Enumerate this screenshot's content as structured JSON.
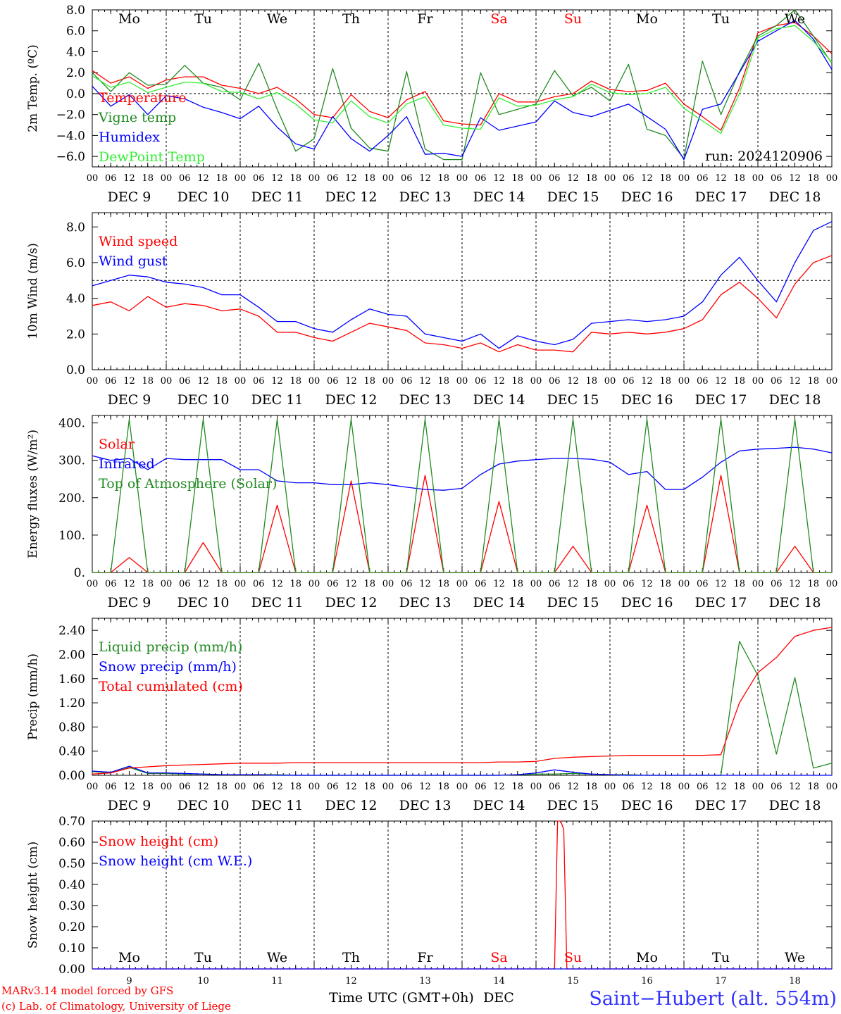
{
  "chart_data": [
    {
      "type": "line",
      "ylabel": "2m Temp. (ºC)",
      "ylim": [
        -7,
        8
      ],
      "yticks": [
        -6,
        -4,
        -2,
        0,
        2,
        4,
        6,
        8
      ],
      "ytick_labels": [
        "−6.0",
        "−4.0",
        "−2.0",
        "0.0",
        "2.0",
        "4.0",
        "6.0",
        "8.0"
      ],
      "reference_line": 0,
      "weekdays": [
        "Mo",
        "Tu",
        "We",
        "Th",
        "Fr",
        "Sa",
        "Su",
        "Mo",
        "Tu",
        "We"
      ],
      "weekday_colors": [
        "#000000",
        "#000000",
        "#000000",
        "#000000",
        "#000000",
        "#ff0000",
        "#ff0000",
        "#000000",
        "#000000",
        "#000000"
      ],
      "annotation": "run: 2024120906",
      "x_hours": [
        0,
        6,
        12,
        18,
        24,
        30,
        36,
        42,
        48,
        54,
        60,
        66,
        72,
        78,
        84,
        90,
        96,
        102,
        108,
        114,
        120,
        126,
        132,
        138,
        144,
        150,
        156,
        162,
        168,
        174,
        180,
        186,
        192,
        198,
        204,
        210,
        216,
        222,
        228,
        234,
        240
      ],
      "series": [
        {
          "name": "Temperature",
          "color": "#ff0000",
          "values": [
            2.2,
            1.0,
            1.6,
            0.5,
            1.3,
            1.6,
            1.6,
            0.8,
            0.5,
            0.0,
            0.6,
            -0.5,
            -2.0,
            -2.3,
            -0.1,
            -1.7,
            -2.3,
            -0.6,
            0.2,
            -2.6,
            -2.9,
            -3.0,
            0.0,
            -0.8,
            -0.8,
            -0.3,
            0.0,
            1.2,
            0.4,
            0.2,
            0.3,
            1.0,
            -1.0,
            -2.2,
            -3.5,
            0.5,
            5.8,
            6.5,
            6.8,
            5.5,
            3.8
          ]
        },
        {
          "name": "Vigne temp",
          "color": "#228b22",
          "values": [
            2.0,
            0.2,
            2.0,
            0.8,
            0.9,
            2.7,
            1.0,
            0.6,
            -0.6,
            2.9,
            -1.5,
            -5.5,
            -4.3,
            2.4,
            -3.3,
            -5.2,
            -5.5,
            2.1,
            -5.3,
            -6.3,
            -6.3,
            2.0,
            -2.0,
            -1.5,
            -1.0,
            2.2,
            -0.2,
            0.6,
            -0.7,
            2.8,
            -3.4,
            -4.0,
            -6.2,
            3.1,
            -2.0,
            2.1,
            5.5,
            6.5,
            8.0,
            5.5,
            2.9
          ]
        },
        {
          "name": "Humidex",
          "color": "#0000ff",
          "values": [
            0.7,
            -1.2,
            -0.1,
            -2.0,
            -0.2,
            -0.5,
            -1.3,
            -1.8,
            -2.4,
            -1.2,
            -3.2,
            -4.8,
            -5.3,
            -2.2,
            -4.3,
            -5.5,
            -4.0,
            -2.2,
            -5.8,
            -5.7,
            -6.0,
            -2.3,
            -3.5,
            -3.1,
            -2.7,
            -0.7,
            -1.8,
            -2.2,
            -1.6,
            -1.0,
            -2.2,
            -3.4,
            -6.3,
            -1.5,
            -1.0,
            2.0,
            5.0,
            6.0,
            7.0,
            5.2,
            2.3
          ]
        },
        {
          "name": "DewPoint Temp",
          "color": "#33ee33",
          "values": [
            1.7,
            0.6,
            1.1,
            0.1,
            0.6,
            1.1,
            1.0,
            0.2,
            0.1,
            -0.5,
            0.1,
            -1.0,
            -2.5,
            -2.8,
            -0.7,
            -2.2,
            -2.8,
            -1.0,
            -0.3,
            -3.0,
            -3.3,
            -3.4,
            -0.4,
            -1.2,
            -1.1,
            -0.6,
            -0.3,
            0.9,
            0.1,
            -0.1,
            0.0,
            0.6,
            -1.4,
            -2.6,
            -3.8,
            0.0,
            5.3,
            6.2,
            6.5,
            5.0,
            3.0
          ]
        }
      ]
    },
    {
      "type": "line",
      "ylabel": "10m Wind (m/s)",
      "ylim": [
        0,
        8.8
      ],
      "yticks": [
        0,
        2,
        4,
        6,
        8
      ],
      "ytick_labels": [
        "0.0",
        "2.0",
        "4.0",
        "6.0",
        "8.0"
      ],
      "reference_line": 5,
      "x_hours": [
        0,
        6,
        12,
        18,
        24,
        30,
        36,
        42,
        48,
        54,
        60,
        66,
        72,
        78,
        84,
        90,
        96,
        102,
        108,
        114,
        120,
        126,
        132,
        138,
        144,
        150,
        156,
        162,
        168,
        174,
        180,
        186,
        192,
        198,
        204,
        210,
        216,
        222,
        228,
        234,
        240
      ],
      "series": [
        {
          "name": "Wind speed",
          "color": "#ff0000",
          "values": [
            3.6,
            3.8,
            3.3,
            4.1,
            3.5,
            3.7,
            3.6,
            3.3,
            3.4,
            3.0,
            2.1,
            2.1,
            1.8,
            1.6,
            2.1,
            2.6,
            2.4,
            2.2,
            1.5,
            1.4,
            1.2,
            1.5,
            1.0,
            1.4,
            1.1,
            1.1,
            1.0,
            2.1,
            2.0,
            2.1,
            2.0,
            2.1,
            2.3,
            2.8,
            4.2,
            4.9,
            4.0,
            2.9,
            4.8,
            6.0,
            6.4
          ]
        },
        {
          "name": "Wind gust",
          "color": "#0000ff",
          "values": [
            4.7,
            5.0,
            5.3,
            5.2,
            4.9,
            4.8,
            4.6,
            4.2,
            4.2,
            3.5,
            2.7,
            2.7,
            2.3,
            2.1,
            2.8,
            3.4,
            3.1,
            3.0,
            2.0,
            1.8,
            1.6,
            2.0,
            1.2,
            1.9,
            1.6,
            1.4,
            1.7,
            2.6,
            2.7,
            2.8,
            2.7,
            2.8,
            3.0,
            3.8,
            5.3,
            6.3,
            5.0,
            3.8,
            6.0,
            7.8,
            8.3
          ]
        }
      ]
    },
    {
      "type": "line",
      "ylabel": "Energy fluxes (W/m²)",
      "ylim": [
        0,
        420
      ],
      "yticks": [
        0,
        100,
        200,
        300,
        400
      ],
      "ytick_labels": [
        "0.",
        "100.",
        "200.",
        "300.",
        "400."
      ],
      "x_hours": [
        0,
        6,
        12,
        18,
        24,
        30,
        36,
        42,
        48,
        54,
        60,
        66,
        72,
        78,
        84,
        90,
        96,
        102,
        108,
        114,
        120,
        126,
        132,
        138,
        144,
        150,
        156,
        162,
        168,
        174,
        180,
        186,
        192,
        198,
        204,
        210,
        216,
        222,
        228,
        234,
        240
      ],
      "series": [
        {
          "name": "Solar",
          "color": "#ff0000",
          "values": [
            0,
            0,
            40,
            0,
            0,
            0,
            80,
            0,
            0,
            0,
            180,
            0,
            0,
            0,
            245,
            0,
            0,
            0,
            260,
            0,
            0,
            0,
            190,
            0,
            0,
            0,
            70,
            0,
            0,
            0,
            180,
            0,
            0,
            0,
            260,
            0,
            0,
            0,
            70,
            0,
            0
          ]
        },
        {
          "name": "Infrared",
          "color": "#0000ff",
          "values": [
            312,
            300,
            305,
            275,
            305,
            302,
            302,
            302,
            275,
            275,
            245,
            240,
            240,
            235,
            235,
            240,
            235,
            228,
            222,
            220,
            225,
            262,
            290,
            298,
            302,
            305,
            305,
            303,
            295,
            262,
            270,
            222,
            222,
            255,
            295,
            325,
            330,
            332,
            335,
            330,
            320
          ]
        },
        {
          "name": "Top of Atmosphere (Solar)",
          "color": "#228b22",
          "values": [
            0,
            0,
            410,
            0,
            0,
            0,
            410,
            0,
            0,
            0,
            410,
            0,
            0,
            0,
            410,
            0,
            0,
            0,
            410,
            0,
            0,
            0,
            410,
            0,
            0,
            0,
            410,
            0,
            0,
            0,
            410,
            0,
            0,
            0,
            410,
            0,
            0,
            0,
            410,
            0,
            0
          ]
        }
      ]
    },
    {
      "type": "line",
      "ylabel": "Precip (mm/h)",
      "ylim": [
        0,
        2.6
      ],
      "yticks": [
        0,
        0.4,
        0.8,
        1.2,
        1.6,
        2.0,
        2.4
      ],
      "ytick_labels": [
        "0.00",
        "0.40",
        "0.80",
        "1.20",
        "1.60",
        "2.00",
        "2.40"
      ],
      "x_hours": [
        0,
        6,
        12,
        18,
        24,
        30,
        36,
        42,
        48,
        54,
        60,
        66,
        72,
        78,
        84,
        90,
        96,
        102,
        108,
        114,
        120,
        126,
        132,
        138,
        144,
        150,
        156,
        162,
        168,
        174,
        180,
        186,
        192,
        198,
        204,
        210,
        216,
        222,
        228,
        234,
        240
      ],
      "series": [
        {
          "name": "Liquid precip (mm/h)",
          "color": "#228b22",
          "values": [
            0.06,
            0.04,
            0.13,
            0.03,
            0.03,
            0.02,
            0.02,
            0.01,
            0.01,
            0.01,
            0.01,
            0.0,
            0.0,
            0.0,
            0.0,
            0.0,
            0.0,
            0.0,
            0.0,
            0.0,
            0.0,
            0.0,
            0.0,
            0.01,
            0.02,
            0.02,
            0.03,
            0.02,
            0.01,
            0.01,
            0.0,
            0.0,
            0.0,
            0.0,
            0.0,
            2.22,
            1.65,
            0.35,
            1.62,
            0.12,
            0.2
          ]
        },
        {
          "name": "Snow precip (mm/h)",
          "color": "#0000ff",
          "values": [
            0.07,
            0.05,
            0.15,
            0.04,
            0.04,
            0.03,
            0.02,
            0.01,
            0.01,
            0.01,
            0.0,
            0.0,
            0.0,
            0.0,
            0.0,
            0.0,
            0.0,
            0.0,
            0.0,
            0.0,
            0.0,
            0.0,
            0.0,
            0.01,
            0.04,
            0.09,
            0.05,
            0.02,
            0.01,
            0.0,
            0.0,
            0.0,
            0.0,
            0.0,
            0.0,
            0.0,
            0.0,
            0.0,
            0.0,
            0.0,
            0.0
          ]
        },
        {
          "name": "Total cumulated (cm)",
          "color": "#ff0000",
          "values": [
            0.02,
            0.04,
            0.12,
            0.14,
            0.16,
            0.17,
            0.18,
            0.19,
            0.2,
            0.2,
            0.2,
            0.21,
            0.21,
            0.21,
            0.21,
            0.21,
            0.21,
            0.21,
            0.21,
            0.21,
            0.21,
            0.21,
            0.22,
            0.22,
            0.23,
            0.28,
            0.3,
            0.31,
            0.32,
            0.33,
            0.33,
            0.33,
            0.33,
            0.33,
            0.34,
            1.2,
            1.7,
            1.95,
            2.3,
            2.4,
            2.45
          ]
        }
      ]
    },
    {
      "type": "line",
      "ylabel": "Snow height (cm)",
      "ylim": [
        0,
        0.7
      ],
      "yticks": [
        0,
        0.1,
        0.2,
        0.3,
        0.4,
        0.5,
        0.6,
        0.7
      ],
      "ytick_labels": [
        "0.00",
        "0.10",
        "0.20",
        "0.30",
        "0.40",
        "0.50",
        "0.60",
        "0.70"
      ],
      "weekdays": [
        "Mo",
        "Tu",
        "We",
        "Th",
        "Fr",
        "Sa",
        "Su",
        "Mo",
        "Tu",
        "We"
      ],
      "weekday_colors": [
        "#000000",
        "#000000",
        "#000000",
        "#000000",
        "#000000",
        "#ff0000",
        "#ff0000",
        "#000000",
        "#000000",
        "#000000"
      ],
      "day_numbers": [
        "9",
        "10",
        "11",
        "12",
        "13",
        "14",
        "15",
        "16",
        "17",
        "18"
      ],
      "x_hours": [
        0,
        24,
        48,
        72,
        96,
        120,
        144,
        150,
        151,
        152,
        153,
        154,
        156,
        168,
        192,
        216,
        240
      ],
      "series": [
        {
          "name": "Snow height (cm)",
          "color": "#ff0000",
          "values": [
            0,
            0,
            0,
            0,
            0,
            0,
            0,
            0,
            0.7,
            0.7,
            0.66,
            0,
            0,
            0,
            0,
            0,
            0
          ]
        },
        {
          "name": "Snow height (cm W.E.)",
          "color": "#0000ff",
          "values": [
            0,
            0,
            0,
            0,
            0,
            0,
            0,
            0,
            0,
            0,
            0,
            0,
            0,
            0,
            0,
            0,
            0
          ]
        }
      ]
    }
  ],
  "x_axis": {
    "hour_labels": [
      "00",
      "06",
      "12",
      "18"
    ],
    "end_label": "00",
    "date_labels": [
      "DEC  9",
      "DEC 10",
      "DEC 11",
      "DEC 12",
      "DEC 13",
      "DEC 14",
      "DEC 15",
      "DEC 16",
      "DEC 17",
      "DEC 18"
    ],
    "bottom_label": "Time UTC (GMT+0h)",
    "month": "DEC"
  },
  "footer": {
    "credit_line1": "MARv3.14 model forced by GFS",
    "credit_line2": "(c) Lab. of Climatology, University of Liege",
    "location": "Saint−Hubert (alt. 554m)",
    "credit_color": "#ff0000",
    "location_color": "#3333ff"
  }
}
